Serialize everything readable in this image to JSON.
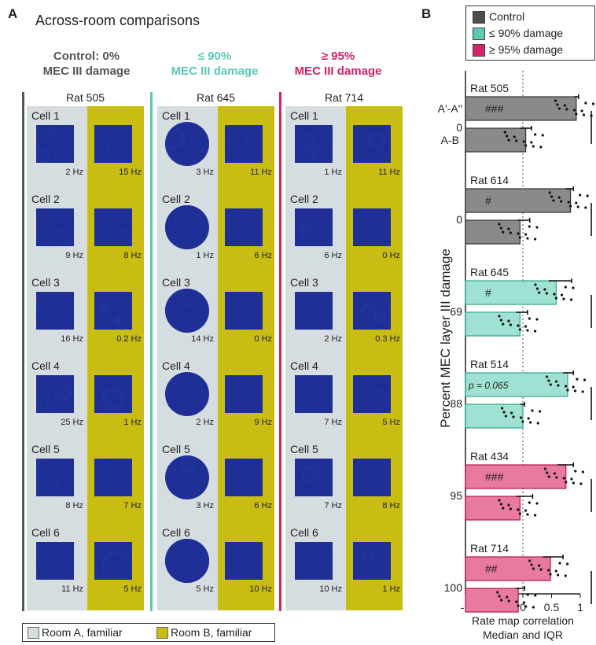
{
  "panel_a": {
    "letter": "A",
    "title": "Across-room comparisons",
    "groups": [
      {
        "line1": "Control: 0%",
        "line2": "MEC III damage",
        "color": "#555555"
      },
      {
        "line1": "≤ 90%",
        "line2": "MEC III damage",
        "color": "#5cc9b4"
      },
      {
        "line1": "≥ 95%",
        "line2": "MEC III damage",
        "color": "#d6226a"
      }
    ],
    "rats": [
      {
        "name": "Rat 505",
        "cells": [
          {
            "label": "Cell 1",
            "hz_a": "2 Hz",
            "hz_b": "15 Hz"
          },
          {
            "label": "Cell 2",
            "hz_a": "9 Hz",
            "hz_b": "8 Hz"
          },
          {
            "label": "Cell 3",
            "hz_a": "16 Hz",
            "hz_b": "0.2 Hz"
          },
          {
            "label": "Cell 4",
            "hz_a": "25 Hz",
            "hz_b": "1 Hz"
          },
          {
            "label": "Cell 5",
            "hz_a": "8 Hz",
            "hz_b": "7 Hz"
          },
          {
            "label": "Cell 6",
            "hz_a": "11 Hz",
            "hz_b": "5 Hz"
          }
        ]
      },
      {
        "name": "Rat 645",
        "cells": [
          {
            "label": "Cell 1",
            "hz_a": "3 Hz",
            "hz_b": "11 Hz"
          },
          {
            "label": "Cell 2",
            "hz_a": "1 Hz",
            "hz_b": "6 Hz"
          },
          {
            "label": "Cell 3",
            "hz_a": "14 Hz",
            "hz_b": "0 Hz"
          },
          {
            "label": "Cell 4",
            "hz_a": "2 Hz",
            "hz_b": "9 Hz"
          },
          {
            "label": "Cell 5",
            "hz_a": "3 Hz",
            "hz_b": "6 Hz"
          },
          {
            "label": "Cell 6",
            "hz_a": "5 Hz",
            "hz_b": "10 Hz"
          }
        ]
      },
      {
        "name": "Rat 714",
        "cells": [
          {
            "label": "Cell 1",
            "hz_a": "1 Hz",
            "hz_b": "11 Hz"
          },
          {
            "label": "Cell 2",
            "hz_a": "6 Hz",
            "hz_b": "0 Hz"
          },
          {
            "label": "Cell 3",
            "hz_a": "2 Hz",
            "hz_b": "0.3 Hz"
          },
          {
            "label": "Cell 4",
            "hz_a": "7 Hz",
            "hz_b": "5 Hz"
          },
          {
            "label": "Cell 5",
            "hz_a": "7 Hz",
            "hz_b": "8 Hz"
          },
          {
            "label": "Cell 6",
            "hz_a": "10 Hz",
            "hz_b": "1 Hz"
          }
        ]
      }
    ],
    "legend": {
      "room_a": "Room A, familiar",
      "room_b": "Room B, familiar",
      "room_a_color": "#d6dde0",
      "room_b_color": "#c9bd13"
    }
  },
  "panel_b": {
    "letter": "B",
    "legend": [
      {
        "label": "Control",
        "color": "#4d4d4d"
      },
      {
        "label": "≤ 90% damage",
        "color": "#5cc9b4"
      },
      {
        "label": "≥ 95% damage",
        "color": "#d6226a"
      }
    ],
    "ylabel": "Percent MEC layer III damage",
    "xlabel_line1": "Rate map correlation",
    "xlabel_line2": "Median and IQR",
    "pair_labels": {
      "aa": "A'-A''",
      "ab": "A-B"
    },
    "p_value_text": "p = 0.065"
  },
  "chart_data": {
    "type": "bar",
    "orientation": "horizontal",
    "xlim": [
      -1,
      1
    ],
    "xticks": [
      "-1",
      "-0.5",
      "0",
      "0.5",
      "1"
    ],
    "groups": [
      {
        "rat": "Rat 505",
        "damage": "0",
        "class": "Control",
        "aa_median": 0.93,
        "ab_median": 0.05,
        "aa_err": [
          0.9,
          0.97
        ],
        "ab_err": [
          -0.05,
          0.15
        ],
        "mark": "###"
      },
      {
        "rat": "Rat 614",
        "damage": "0",
        "class": "Control",
        "aa_median": 0.83,
        "ab_median": -0.05,
        "aa_err": [
          0.75,
          0.88
        ],
        "ab_err": [
          -0.1,
          0.12
        ],
        "mark": "#"
      },
      {
        "rat": "Rat 645",
        "damage": "69",
        "class": "≤ 90% damage",
        "aa_median": 0.58,
        "ab_median": -0.05,
        "aa_err": [
          0.45,
          0.85
        ],
        "ab_err": [
          -0.12,
          0.08
        ],
        "mark": "#"
      },
      {
        "rat": "Rat 514",
        "damage": "88",
        "class": "≤ 90% damage",
        "aa_median": 0.78,
        "ab_median": 0.0,
        "aa_err": [
          0.7,
          0.88
        ],
        "ab_err": [
          -0.05,
          0.03
        ],
        "mark": "p = 0.065"
      },
      {
        "rat": "Rat 434",
        "damage": "95",
        "class": "≥ 95% damage",
        "aa_median": 0.75,
        "ab_median": -0.05,
        "aa_err": [
          0.6,
          0.88
        ],
        "ab_err": [
          -0.12,
          0.17
        ],
        "mark": "###"
      },
      {
        "rat": "Rat 714",
        "damage": "100",
        "class": "≥ 95% damage",
        "aa_median": 0.48,
        "ab_median": -0.08,
        "aa_err": [
          0.35,
          0.7
        ],
        "ab_err": [
          -0.12,
          0.03
        ],
        "mark": "##"
      }
    ]
  }
}
